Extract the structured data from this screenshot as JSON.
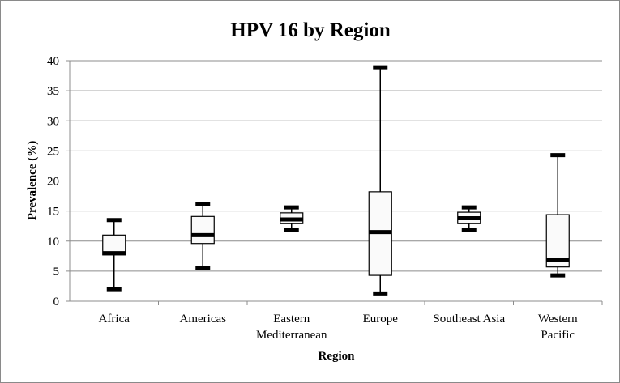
{
  "chart_data": {
    "type": "box",
    "title": "HPV 16 by Region",
    "xlabel": "Region",
    "ylabel": "Prevalence (%)",
    "ylim": [
      0,
      40
    ],
    "yticks": [
      0,
      5,
      10,
      15,
      20,
      25,
      30,
      35,
      40
    ],
    "grid": true,
    "categories": [
      {
        "label": [
          "Africa"
        ],
        "min": 2.0,
        "q1": 7.7,
        "median": 8.0,
        "q3": 11.0,
        "max": 13.5
      },
      {
        "label": [
          "Americas"
        ],
        "min": 5.5,
        "q1": 9.6,
        "median": 11.0,
        "q3": 14.1,
        "max": 16.1
      },
      {
        "label": [
          "Eastern",
          "Mediterranean"
        ],
        "min": 11.8,
        "q1": 12.9,
        "median": 13.6,
        "q3": 14.7,
        "max": 15.6
      },
      {
        "label": [
          "Europe"
        ],
        "min": 1.3,
        "q1": 4.3,
        "median": 11.5,
        "q3": 18.2,
        "max": 38.9
      },
      {
        "label": [
          "Southeast Asia"
        ],
        "min": 11.9,
        "q1": 12.9,
        "median": 13.8,
        "q3": 14.8,
        "max": 15.6
      },
      {
        "label": [
          "Western",
          "Pacific"
        ],
        "min": 4.3,
        "q1": 5.7,
        "median": 6.8,
        "q3": 14.4,
        "max": 24.3
      }
    ]
  }
}
